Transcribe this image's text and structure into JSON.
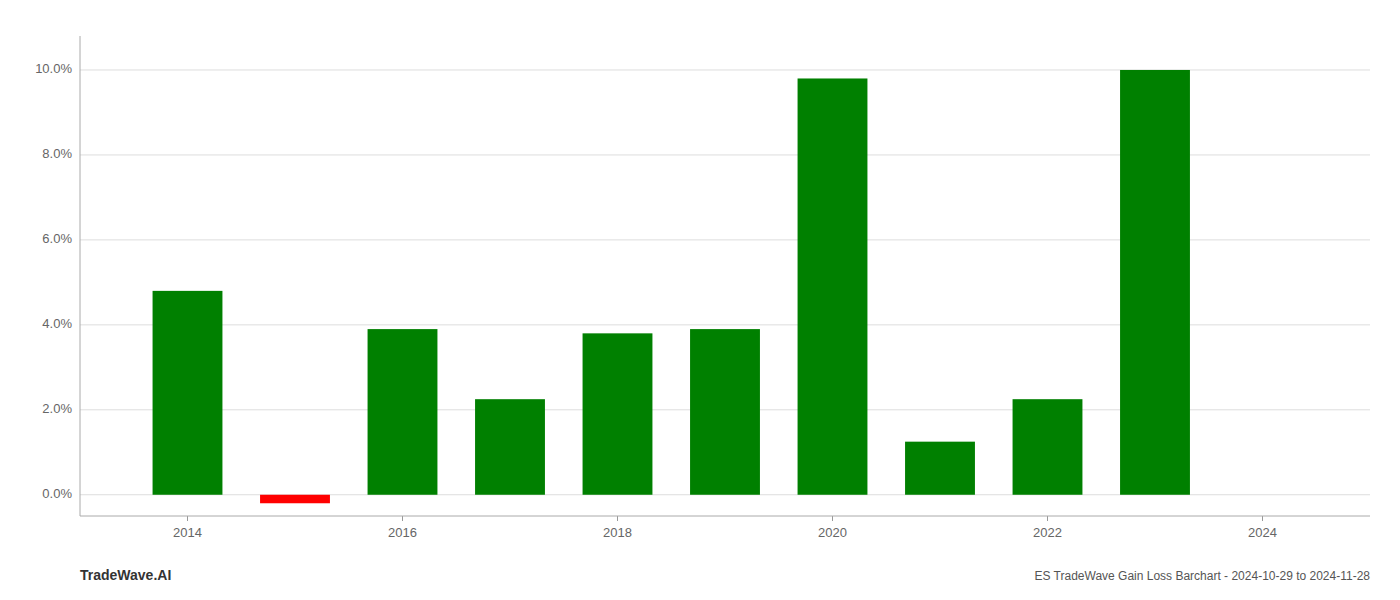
{
  "chart_data": {
    "type": "bar",
    "title": "ES TradeWave Gain Loss Barchart - 2024-10-29 to 2024-11-28",
    "annotations": [
      "TradeWave.AI"
    ],
    "x": [
      2014,
      2015,
      2016,
      2017,
      2018,
      2019,
      2020,
      2021,
      2022,
      2023
    ],
    "values": [
      0.048,
      -0.002,
      0.039,
      0.0225,
      0.038,
      0.039,
      0.098,
      0.0125,
      0.0225,
      0.1
    ],
    "colors": [
      "#008000",
      "#ff0000",
      "#008000",
      "#008000",
      "#008000",
      "#008000",
      "#008000",
      "#008000",
      "#008000",
      "#008000"
    ],
    "xlim": [
      2013.0,
      2025.0
    ],
    "xticks": [
      2014,
      2016,
      2018,
      2020,
      2022,
      2024
    ],
    "ylim": [
      -0.005,
      0.108
    ],
    "yticks": [
      {
        "value": 0.0,
        "label": "0.0%"
      },
      {
        "value": 0.02,
        "label": "2.0%"
      },
      {
        "value": 0.04,
        "label": "4.0%"
      },
      {
        "value": 0.06,
        "label": "6.0%"
      },
      {
        "value": 0.08,
        "label": "8.0%"
      },
      {
        "value": 0.1,
        "label": "10.0%"
      }
    ],
    "grid": true
  }
}
